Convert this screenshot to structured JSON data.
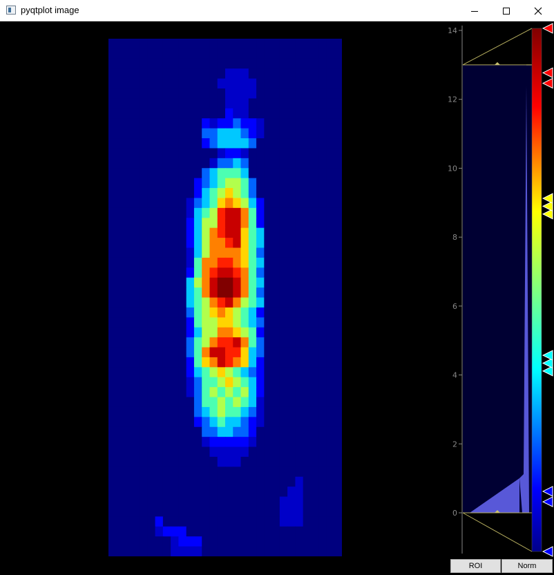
{
  "window": {
    "title": "pyqtplot image",
    "minimize_icon": "minimize-icon",
    "maximize_icon": "maximize-icon",
    "close_icon": "close-icon"
  },
  "histogram": {
    "axis_ticks": [
      "0",
      "2",
      "4",
      "6",
      "8",
      "10",
      "12",
      "14"
    ],
    "axis_range": [
      0,
      14
    ],
    "level_min": 0,
    "level_max": 13,
    "gradient_stops": [
      {
        "pos": 0.0,
        "color": "#00008b"
      },
      {
        "pos": 0.12,
        "color": "#0000ff"
      },
      {
        "pos": 0.35,
        "color": "#00ffff"
      },
      {
        "pos": 0.5,
        "color": "#80ff80"
      },
      {
        "pos": 0.65,
        "color": "#ffff00"
      },
      {
        "pos": 0.85,
        "color": "#ff0000"
      },
      {
        "pos": 1.0,
        "color": "#800000"
      }
    ],
    "ticks": [
      {
        "pos": 0.0,
        "color": "#0000ff"
      },
      {
        "pos": 0.095,
        "color": "#0000ff"
      },
      {
        "pos": 0.115,
        "color": "#0000ff"
      },
      {
        "pos": 0.345,
        "color": "#00ffff"
      },
      {
        "pos": 0.36,
        "color": "#00ffff"
      },
      {
        "pos": 0.375,
        "color": "#00ffff"
      },
      {
        "pos": 0.645,
        "color": "#ffff00"
      },
      {
        "pos": 0.66,
        "color": "#ffff00"
      },
      {
        "pos": 0.675,
        "color": "#ffff00"
      },
      {
        "pos": 0.895,
        "color": "#ff0000"
      },
      {
        "pos": 0.915,
        "color": "#ff0000"
      },
      {
        "pos": 1.0,
        "color": "#ff0000"
      }
    ]
  },
  "buttons": {
    "roi": "ROI",
    "norm": "Norm"
  },
  "image": {
    "palette": {
      "0": "#00007f",
      "1": "#0000c8",
      "2": "#0000ff",
      "3": "#0064ff",
      "4": "#00c8ff",
      "5": "#4cffb2",
      "6": "#b2ff4c",
      "7": "#ffd400",
      "8": "#ff8000",
      "9": "#ff2000",
      "a": "#c80000",
      "b": "#800000"
    },
    "rows": [
      "000000000000000000000000000000",
      "000000000000000000000000000000",
      "000000000000000000000000000000",
      "000000000000000111000000000000",
      "000000000000001111100000000000",
      "000000000000000111100000000000",
      "000000000000000111000000000000",
      "000000000000000211000000000000",
      "000000000000212232210000000000",
      "000000000000334443210000000000",
      "000000000000234444300000000000",
      "000000000000001221000000000000",
      "000000000000013343000000000000",
      "000000000000345554000000000000",
      "000000000002345665300000000000",
      "000000000002456765300000000000",
      "000000000013457876420000000000",
      "000000000014569aa8520000000000",
      "000000000024669aa8520000000000",
      "000000000024689aa7540000000000",
      "0000000000246889a7540000000000",
      "000000000014688887530000000000",
      "000000000015889987540000000000",
      "00000000002589aa98530000000000",
      "0000000000468abba8540000000000",
      "0000000000458abba8530000000000",
      "000000000045689a86540000000000",
      "000000000035678765420000000000",
      "000000000025667765430000000000",
      "000000000024668876520000000000",
      "0000000000356899a8530000000000",
      "0000000000358aa997430000000000",
      "00000000002578a987420000000000",
      "000000000024567654320000000000",
      "000000000013556765420000000000",
      "000000000013565656420000000000",
      "000000000003556565410000000000",
      "000000000003456554310000000000",
      "000000000002345443210000000000",
      "000000000000334433200000000000",
      "000000000000122222100000000000",
      "000000000000011111000000000000",
      "000000000000001110000000000000",
      "000000000000000000000000000000",
      "000000000000000000000000100000",
      "000000000000000000000001100000",
      "000000000000000000000011100000",
      "000000000000000000000011100000",
      "000000200000000000000011100000",
      "000000122200000000000000000000",
      "000000001222000000000000000000",
      "000000001111000000000000000000"
    ]
  }
}
